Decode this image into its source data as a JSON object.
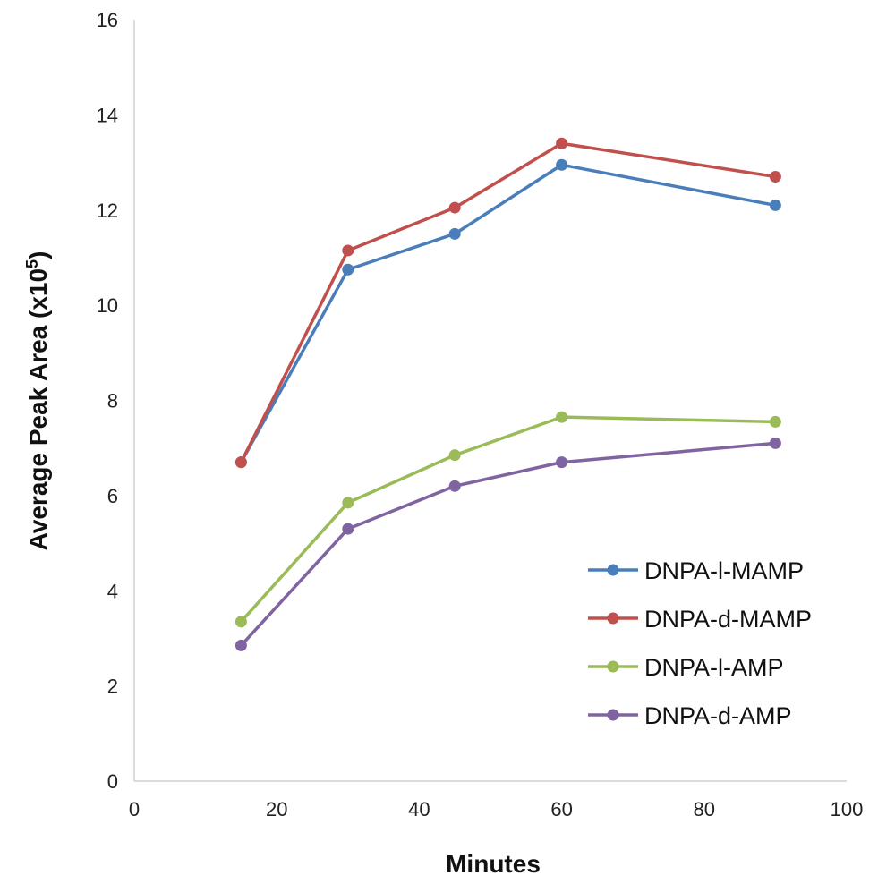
{
  "chart_data": {
    "type": "line",
    "title": "",
    "xlabel": "Minutes",
    "ylabel": "Average Peak Area (x10",
    "ylabel_superscript": "5",
    "ylabel_close": ")",
    "xlim": [
      0,
      100
    ],
    "ylim": [
      0,
      16
    ],
    "xticks": [
      0,
      20,
      40,
      60,
      80,
      100
    ],
    "yticks": [
      0,
      2,
      4,
      6,
      8,
      10,
      12,
      14,
      16
    ],
    "grid": false,
    "legend_position": "bottom-right",
    "x": [
      15,
      30,
      45,
      60,
      90
    ],
    "series": [
      {
        "name": "DNPA-l-MAMP",
        "color": "#4a7ebb",
        "values": [
          6.7,
          10.75,
          11.5,
          12.95,
          12.1
        ]
      },
      {
        "name": "DNPA-d-MAMP",
        "color": "#c0504d",
        "values": [
          6.7,
          11.15,
          12.05,
          13.4,
          12.7
        ]
      },
      {
        "name": "DNPA-l-AMP",
        "color": "#9bbb59",
        "values": [
          3.35,
          5.85,
          6.85,
          7.65,
          7.55
        ]
      },
      {
        "name": "DNPA-d-AMP",
        "color": "#8064a2",
        "values": [
          2.85,
          5.3,
          6.2,
          6.7,
          7.1
        ]
      }
    ]
  }
}
